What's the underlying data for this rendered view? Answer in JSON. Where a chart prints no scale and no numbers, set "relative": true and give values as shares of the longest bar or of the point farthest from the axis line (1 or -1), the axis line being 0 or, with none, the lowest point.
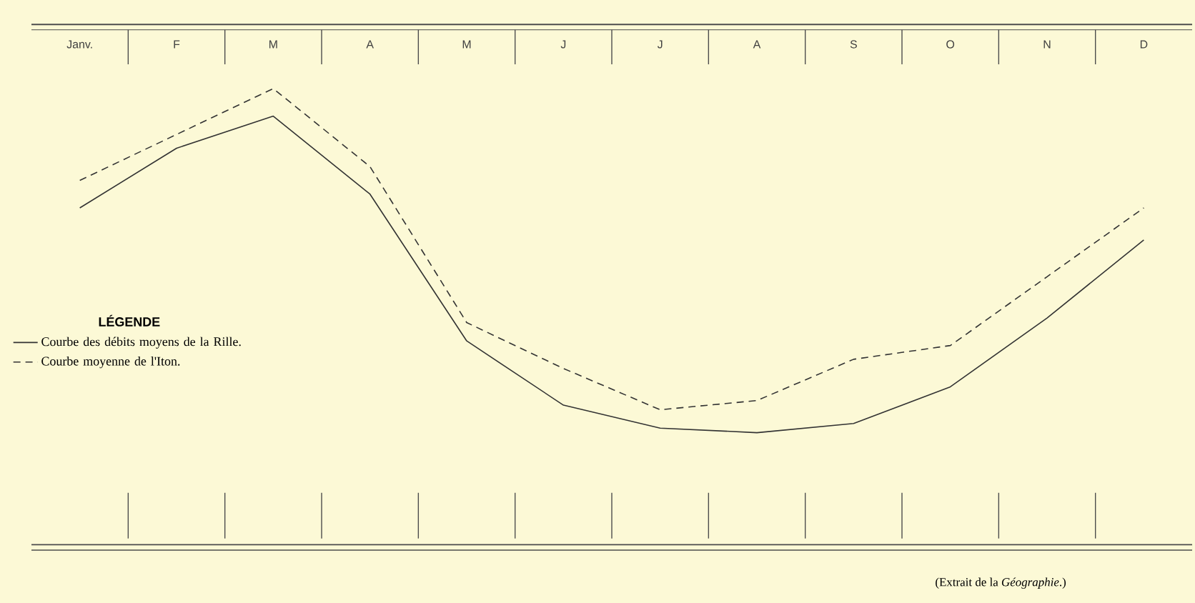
{
  "chart_data": {
    "type": "line",
    "relative": true,
    "categories": [
      "Janv.",
      "F",
      "M",
      "A",
      "M",
      "J",
      "J",
      "A",
      "S",
      "O",
      "N",
      "D"
    ],
    "legend_title": "LÉGENDE",
    "legend": "left",
    "marker": "none",
    "annotations": [
      "(Extrait de la *Géographie*.)"
    ],
    "series": [
      {
        "name": "Courbe des débits moyens de la Rille.",
        "color": "#333333",
        "line_style": "solid",
        "values": [
          0.74,
          0.87,
          0.94,
          0.77,
          0.45,
          0.31,
          0.26,
          0.25,
          0.27,
          0.35,
          0.5,
          0.67
        ]
      },
      {
        "name": "Courbe moyenne de l'Iton.",
        "color": "#333333",
        "line_style": "dashed",
        "values": [
          0.8,
          0.9,
          1.0,
          0.83,
          0.49,
          0.39,
          0.3,
          0.32,
          0.41,
          0.44,
          0.59,
          0.74
        ]
      }
    ]
  }
}
